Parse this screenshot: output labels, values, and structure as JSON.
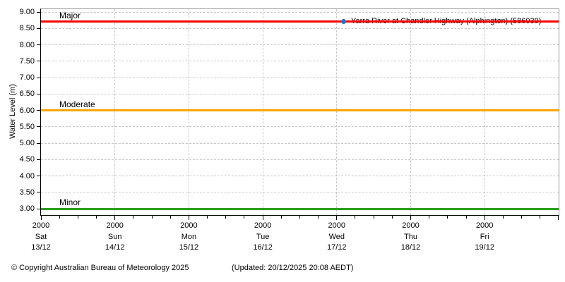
{
  "chart_data": {
    "type": "line",
    "title": "",
    "xlabel": "",
    "ylabel": "Water Level (m)",
    "ylim": [
      3.0,
      9.0
    ],
    "y_tick_step": 0.5,
    "y_ticks": [
      9.0,
      8.5,
      8.0,
      7.5,
      7.0,
      6.5,
      6.0,
      5.5,
      5.0,
      4.5,
      4.0,
      3.5,
      3.0
    ],
    "x_ticks": [
      {
        "time": "2000",
        "day": "Sat",
        "date": "13/12"
      },
      {
        "time": "2000",
        "day": "Sun",
        "date": "14/12"
      },
      {
        "time": "2000",
        "day": "Mon",
        "date": "15/12"
      },
      {
        "time": "2000",
        "day": "Tue",
        "date": "16/12"
      },
      {
        "time": "2000",
        "day": "Wed",
        "date": "17/12"
      },
      {
        "time": "2000",
        "day": "Thu",
        "date": "18/12"
      },
      {
        "time": "2000",
        "day": "Fri",
        "date": "19/12"
      }
    ],
    "x_minor_ticks_per_major": 4,
    "grid": true,
    "legend": {
      "position": "top-right-inside",
      "marker": "dot",
      "marker_color": "#1976d2",
      "label": "Yarra River at Chandler Highway (Alphington) (586039)"
    },
    "thresholds": [
      {
        "name": "Minor",
        "value": 3.0,
        "color": "#2e9e20"
      },
      {
        "name": "Moderate",
        "value": 6.0,
        "color": "#ffa500"
      },
      {
        "name": "Major",
        "value": 8.7,
        "color": "#ff0000"
      }
    ],
    "series": [
      {
        "name": "Yarra River at Chandler Highway (Alphington) (586039)",
        "color": "#1976d2",
        "x": [],
        "values": []
      }
    ],
    "grid_color": "#c8c8c8",
    "frame_color": "#999999",
    "axis_color": "#000000"
  },
  "footer": {
    "copyright": "© Copyright Australian Bureau of Meteorology 2025",
    "updated": "(Updated: 20/12/2025 20:08 AEDT)"
  }
}
